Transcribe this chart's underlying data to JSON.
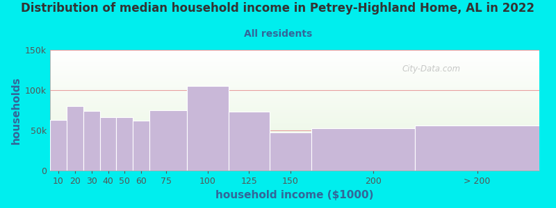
{
  "title": "Distribution of median household income in Petrey-Highland Home, AL in 2022",
  "subtitle": "All residents",
  "xlabel": "household income ($1000)",
  "ylabel": "households",
  "bar_labels": [
    "10",
    "20",
    "30",
    "40",
    "50",
    "60",
    "75",
    "100",
    "125",
    "150",
    "200",
    "> 200"
  ],
  "bar_values": [
    63000,
    80000,
    74000,
    66000,
    66000,
    62000,
    75000,
    105000,
    73000,
    47000,
    53000,
    56000
  ],
  "bar_lefts": [
    5,
    15,
    25,
    35,
    45,
    55,
    65,
    87.5,
    112.5,
    137.5,
    162.5,
    225
  ],
  "bar_widths": [
    10,
    10,
    10,
    10,
    10,
    10,
    22.5,
    25,
    25,
    25,
    62.5,
    75
  ],
  "bar_color": "#c9b8d8",
  "bar_edgecolor": "#ffffff",
  "background_color": "#00eeee",
  "plot_bg_top": "#e8f5e0",
  "plot_bg_bottom": "#ffffff",
  "title_color": "#333333",
  "subtitle_color": "#336699",
  "axis_label_color": "#336699",
  "tick_color": "#555555",
  "grid_color": "#e8a0a0",
  "ylim": [
    0,
    150000
  ],
  "yticks": [
    0,
    50000,
    100000,
    150000
  ],
  "xtick_positions": [
    10,
    20,
    30,
    40,
    50,
    60,
    75,
    100,
    125,
    150,
    200,
    262.5
  ],
  "xtick_labels": [
    "10",
    "20",
    "30",
    "40",
    "50",
    "60",
    "75",
    "100",
    "125",
    "150",
    "200",
    "> 200"
  ],
  "xlim": [
    5,
    300
  ],
  "watermark": "City-Data.com",
  "title_fontsize": 12,
  "subtitle_fontsize": 10,
  "axis_label_fontsize": 11,
  "tick_fontsize": 9
}
